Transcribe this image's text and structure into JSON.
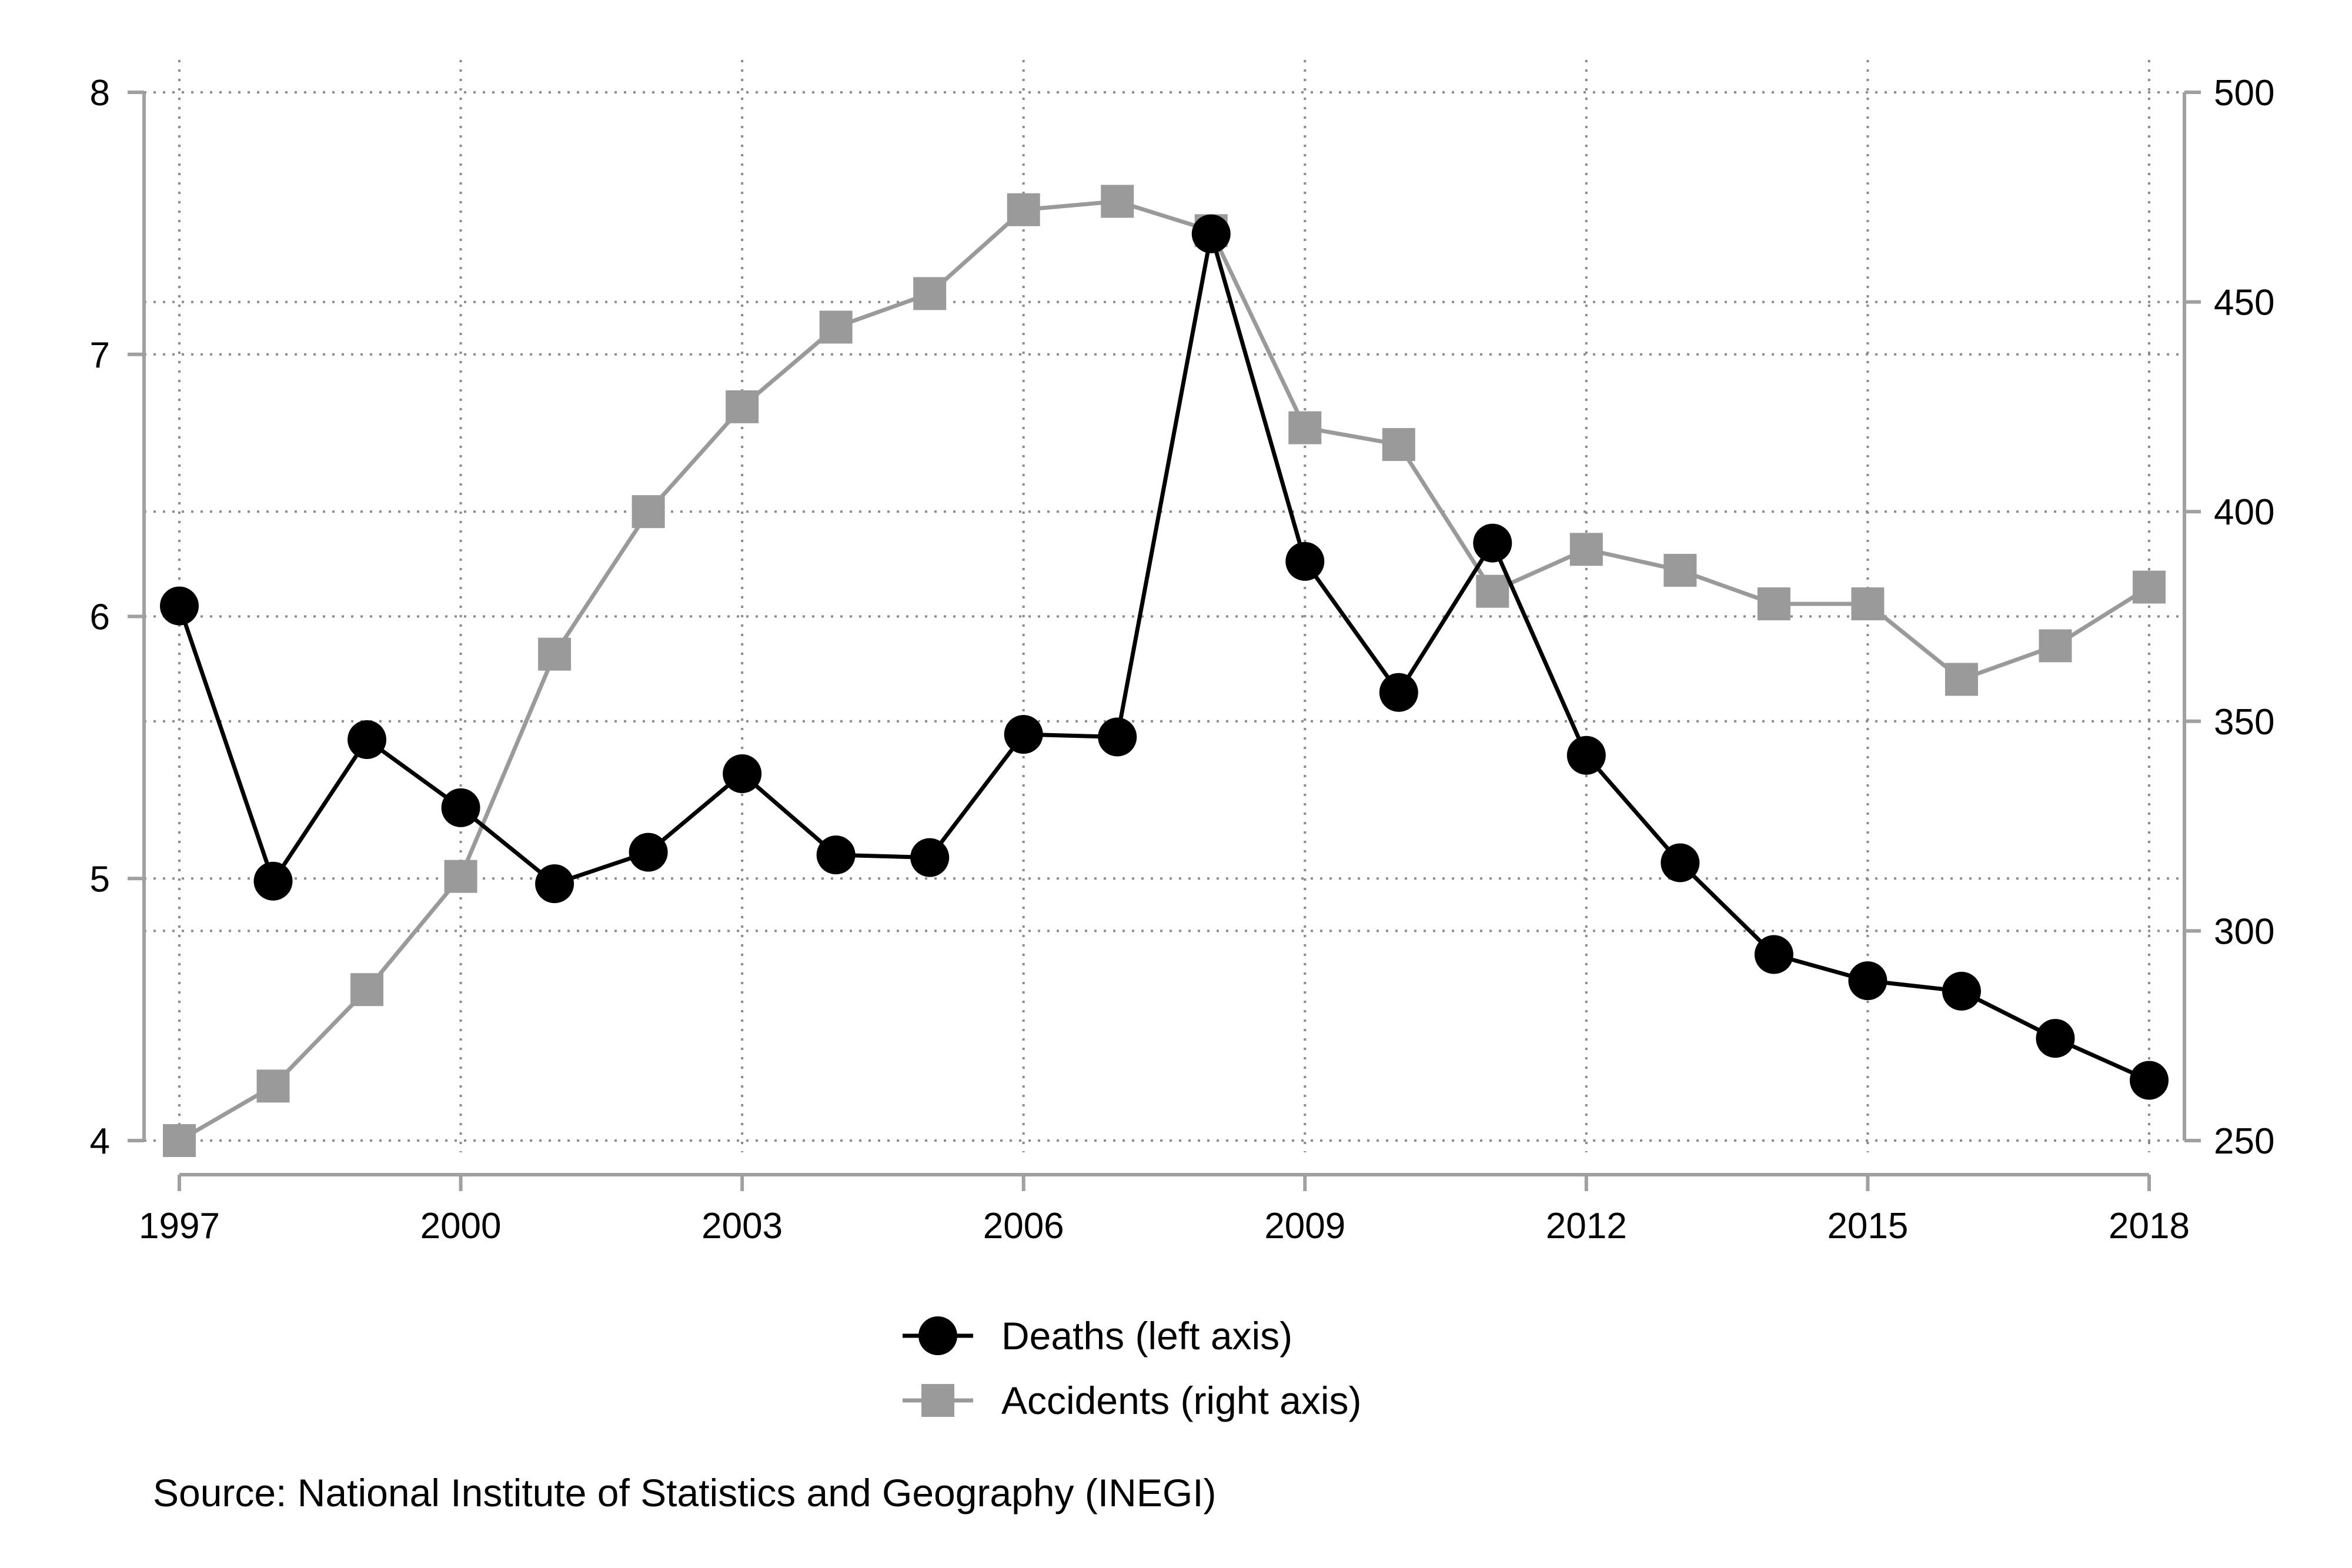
{
  "chart_data": {
    "type": "line",
    "title": "",
    "xlabel": "",
    "ylabel_left": "",
    "ylabel_right": "",
    "x": [
      1997,
      1998,
      1999,
      2000,
      2001,
      2002,
      2003,
      2004,
      2005,
      2006,
      2007,
      2008,
      2009,
      2010,
      2011,
      2012,
      2013,
      2014,
      2015,
      2016,
      2017,
      2018
    ],
    "xlim": [
      1997,
      2018
    ],
    "x_ticks": [
      1997,
      2000,
      2003,
      2006,
      2009,
      2012,
      2015,
      2018
    ],
    "y_left": {
      "range": [
        4,
        8
      ],
      "ticks": [
        4,
        5,
        6,
        7,
        8
      ]
    },
    "y_right": {
      "range": [
        250,
        500
      ],
      "ticks": [
        250,
        300,
        350,
        400,
        450,
        500
      ]
    },
    "grid": true,
    "legend_position": "bottom",
    "series": [
      {
        "name": "Deaths (left axis)",
        "axis": "left",
        "marker": "circle",
        "color": "#000000",
        "values": [
          6.04,
          4.99,
          5.53,
          5.27,
          4.98,
          5.1,
          5.4,
          5.09,
          5.08,
          5.55,
          5.54,
          7.46,
          6.21,
          5.71,
          6.28,
          5.47,
          5.06,
          4.71,
          4.61,
          4.57,
          4.39,
          4.23
        ]
      },
      {
        "name": "Accidents (right axis)",
        "axis": "right",
        "marker": "square",
        "color": "#9a9a9a",
        "values": [
          250,
          263,
          286,
          313,
          366,
          400,
          425,
          444,
          452,
          472,
          474,
          467,
          420,
          416,
          381,
          391,
          386,
          378,
          378,
          360,
          368,
          382
        ]
      }
    ],
    "note": "Source: National Institute of Statistics and Geography (INEGI)"
  }
}
